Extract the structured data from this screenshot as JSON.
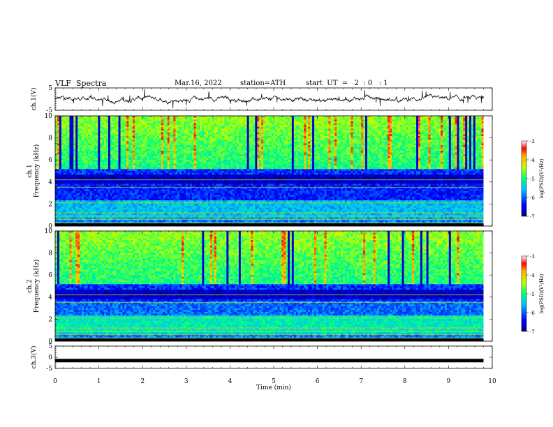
{
  "header": {
    "title": "VLF  Spectra",
    "date": "Mar.16, 2022",
    "station": "station=ATH",
    "start": "start  UT  =   2  : 0   : 1"
  },
  "chart_data": [
    {
      "type": "line",
      "ylabel": "ch.1(V)",
      "yticks": [
        "5",
        "-5"
      ],
      "ylim": [
        -5,
        5
      ],
      "x_range_min": [
        0,
        9.8
      ]
    },
    {
      "type": "heatmap",
      "ylabel_lines": [
        "ch.1",
        "Frequency  (kHz)"
      ],
      "yticks": [
        "10",
        "8",
        "6",
        "4",
        "2",
        "0"
      ],
      "ylim": [
        0,
        10
      ],
      "colorbar": {
        "label": "log(PSD)(V²/Hz)",
        "ticks": [
          "-3",
          "-4",
          "-5",
          "-6",
          "-7"
        ],
        "range": [
          -7,
          -3
        ]
      }
    },
    {
      "type": "heatmap",
      "ylabel_lines": [
        "ch.2",
        "Frequency  (kHz)"
      ],
      "yticks": [
        "10",
        "8",
        "6",
        "4",
        "2",
        "0"
      ],
      "ylim": [
        0,
        10
      ],
      "colorbar": {
        "label": "log(PSD)(V²/Hz)",
        "ticks": [
          "-3",
          "-4",
          "-5",
          "-6",
          "-7"
        ],
        "range": [
          -7,
          -3
        ]
      }
    },
    {
      "type": "line",
      "ylabel": "ch.3(V)",
      "yticks": [
        "5",
        "0",
        "-5"
      ],
      "ylim": [
        -5,
        5
      ],
      "flat_value": -1.5
    }
  ],
  "xaxis": {
    "label": "Time  (min)",
    "ticks": [
      "0",
      "1",
      "2",
      "3",
      "4",
      "5",
      "6",
      "7",
      "8",
      "9",
      "10"
    ],
    "xlim": [
      0,
      10
    ]
  },
  "colormap": [
    "#000080",
    "#0000ff",
    "#00bfff",
    "#00ff80",
    "#bfff00",
    "#ffb000",
    "#ff0000",
    "#ffffff"
  ]
}
